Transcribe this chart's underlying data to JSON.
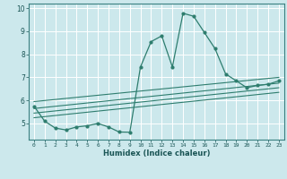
{
  "xlabel": "Humidex (Indice chaleur)",
  "bg_color": "#cce8ec",
  "grid_color": "#ffffff",
  "line_color": "#2e7d6e",
  "xlim": [
    -0.5,
    23.5
  ],
  "ylim": [
    4.3,
    10.2
  ],
  "yticks": [
    5,
    6,
    7,
    8,
    9,
    10
  ],
  "xticks": [
    0,
    1,
    2,
    3,
    4,
    5,
    6,
    7,
    8,
    9,
    10,
    11,
    12,
    13,
    14,
    15,
    16,
    17,
    18,
    19,
    20,
    21,
    22,
    23
  ],
  "main_curve": {
    "x": [
      0,
      1,
      2,
      3,
      4,
      5,
      6,
      7,
      8,
      9,
      10,
      11,
      12,
      13,
      14,
      15,
      16,
      17,
      18,
      19,
      20,
      21,
      22,
      23
    ],
    "y": [
      5.75,
      5.1,
      4.8,
      4.72,
      4.85,
      4.9,
      5.0,
      4.85,
      4.63,
      4.62,
      7.45,
      8.55,
      8.8,
      7.45,
      9.78,
      9.65,
      8.95,
      8.25,
      7.15,
      6.85,
      6.55,
      6.65,
      6.7,
      6.85
    ]
  },
  "flat_lines": [
    {
      "x": [
        0,
        23
      ],
      "y": [
        5.95,
        7.0
      ]
    },
    {
      "x": [
        0,
        23
      ],
      "y": [
        5.65,
        6.75
      ]
    },
    {
      "x": [
        0,
        23
      ],
      "y": [
        5.45,
        6.55
      ]
    },
    {
      "x": [
        0,
        23
      ],
      "y": [
        5.25,
        6.35
      ]
    }
  ]
}
